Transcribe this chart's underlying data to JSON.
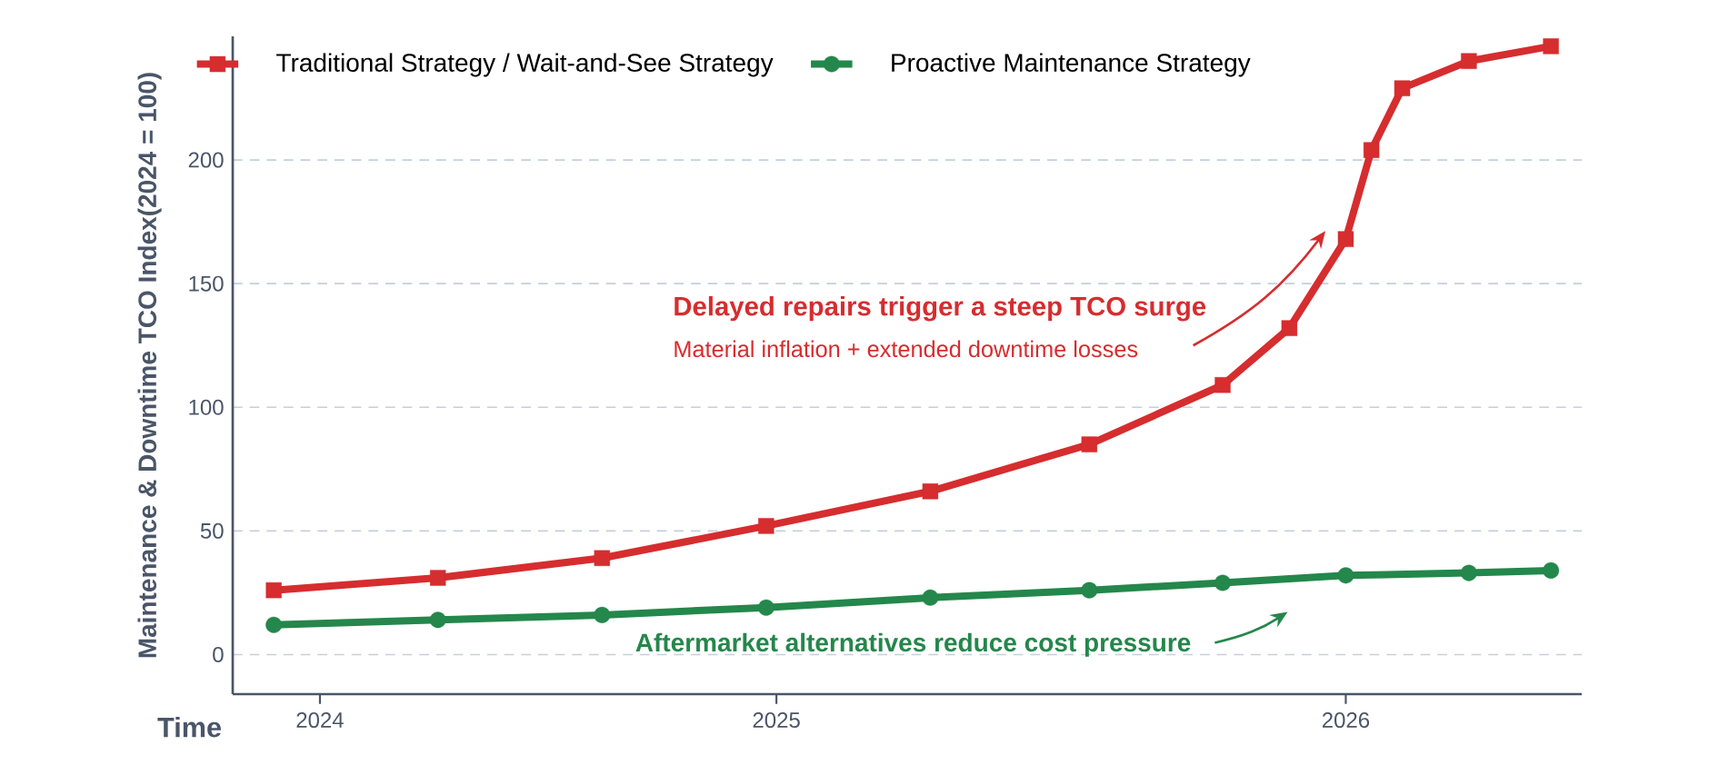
{
  "chart_data": {
    "type": "line",
    "xlabel": "Time",
    "ylabel": "Maintenance & Downtime TCO Index(2024 = 100)",
    "xlim": [
      2023.83,
      2026.46
    ],
    "xticks": [
      {
        "value": 2024,
        "label": "2024"
      },
      {
        "value": 2024.89,
        "label": "2025"
      },
      {
        "value": 2026,
        "label": "2026"
      }
    ],
    "ylim": [
      -16,
      250
    ],
    "yticks": [
      0,
      50,
      100,
      150,
      200
    ],
    "grid": "y",
    "legend": "top",
    "line_style": "solid",
    "series": [
      {
        "name": "Traditional Strategy / Wait-and-See Strategy",
        "color": "#d62d2f",
        "marker": "square",
        "x": [
          2023.91,
          2024.23,
          2024.55,
          2024.87,
          2025.19,
          2025.5,
          2025.76,
          2025.89,
          2026.0,
          2026.05,
          2026.11,
          2026.24,
          2026.4
        ],
        "values": [
          26,
          31,
          39,
          52,
          66,
          85,
          109,
          132,
          168,
          204,
          229,
          240,
          246
        ]
      },
      {
        "name": "Proactive Maintenance Strategy",
        "color": "#24874b",
        "marker": "circle",
        "x": [
          2023.91,
          2024.23,
          2024.55,
          2024.87,
          2025.19,
          2025.5,
          2025.76,
          2026.0,
          2026.24,
          2026.4
        ],
        "values": [
          12,
          14,
          16,
          19,
          23,
          26,
          29,
          32,
          33,
          34
        ]
      }
    ],
    "annotations": [
      "Delayed repairs trigger a steep TCO surge",
      "Material inflation + extended downtime losses",
      "Aftermarket alternatives reduce cost pressure"
    ]
  }
}
